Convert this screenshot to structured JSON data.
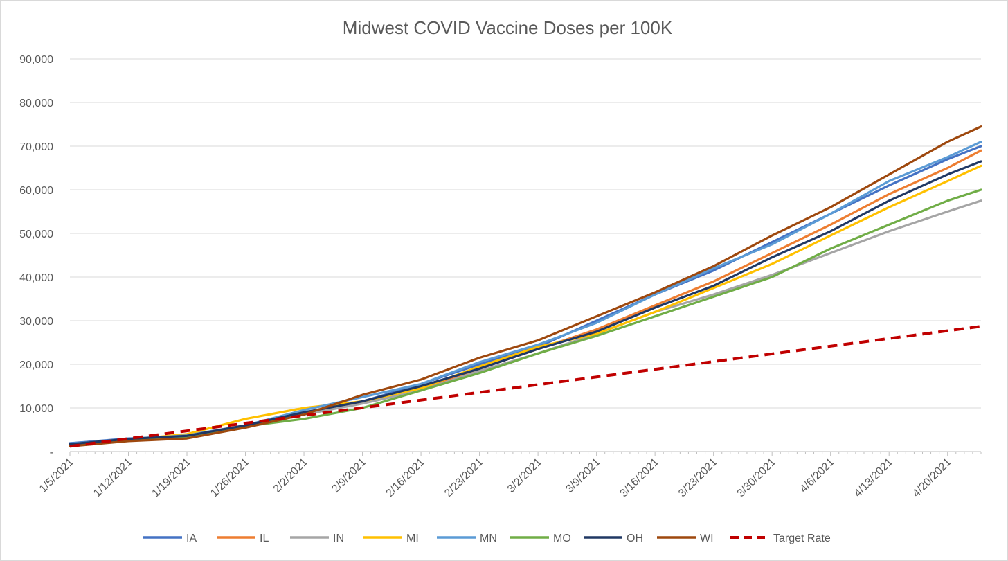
{
  "chart_data": {
    "type": "line",
    "title": "Midwest COVID Vaccine Doses per 100K",
    "xlabel": "",
    "ylabel": "",
    "ylim": [
      0,
      90000
    ],
    "y_ticks": [
      0,
      10000,
      20000,
      30000,
      40000,
      50000,
      60000,
      70000,
      80000,
      90000
    ],
    "y_tick_labels": [
      "-",
      "10,000",
      "20,000",
      "30,000",
      "40,000",
      "50,000",
      "60,000",
      "70,000",
      "80,000",
      "90,000"
    ],
    "x_start": "2021-01-05",
    "x_end": "2021-04-24",
    "x_tick_dates": [
      "2021-01-05",
      "2021-01-12",
      "2021-01-19",
      "2021-01-26",
      "2021-02-02",
      "2021-02-09",
      "2021-02-16",
      "2021-02-23",
      "2021-03-02",
      "2021-03-09",
      "2021-03-16",
      "2021-03-23",
      "2021-03-30",
      "2021-04-06",
      "2021-04-13",
      "2021-04-20"
    ],
    "x_tick_labels": [
      "1/5/2021",
      "1/12/2021",
      "1/19/2021",
      "1/26/2021",
      "2/2/2021",
      "2/9/2021",
      "2/16/2021",
      "2/23/2021",
      "3/2/2021",
      "3/9/2021",
      "3/16/2021",
      "3/23/2021",
      "3/30/2021",
      "4/6/2021",
      "4/13/2021",
      "4/20/2021"
    ],
    "grid": true,
    "legend_position": "bottom",
    "series": [
      {
        "name": "IA",
        "color": "#4472C4",
        "dash": false,
        "points": [
          [
            "2021-01-05",
            1900
          ],
          [
            "2021-01-12",
            3000
          ],
          [
            "2021-01-19",
            3500
          ],
          [
            "2021-01-26",
            6000
          ],
          [
            "2021-02-02",
            8500
          ],
          [
            "2021-02-09",
            11500
          ],
          [
            "2021-02-16",
            15500
          ],
          [
            "2021-02-23",
            20000
          ],
          [
            "2021-03-02",
            24000
          ],
          [
            "2021-03-09",
            30000
          ],
          [
            "2021-03-16",
            36000
          ],
          [
            "2021-03-23",
            41500
          ],
          [
            "2021-03-30",
            48000
          ],
          [
            "2021-04-06",
            54500
          ],
          [
            "2021-04-13",
            61000
          ],
          [
            "2021-04-20",
            67000
          ],
          [
            "2021-04-24",
            70000
          ]
        ]
      },
      {
        "name": "IL",
        "color": "#ED7D31",
        "dash": false,
        "points": [
          [
            "2021-01-05",
            1500
          ],
          [
            "2021-01-12",
            2600
          ],
          [
            "2021-01-19",
            3200
          ],
          [
            "2021-01-26",
            5500
          ],
          [
            "2021-02-02",
            8500
          ],
          [
            "2021-02-09",
            11500
          ],
          [
            "2021-02-16",
            14500
          ],
          [
            "2021-02-23",
            19000
          ],
          [
            "2021-03-02",
            23500
          ],
          [
            "2021-03-09",
            28000
          ],
          [
            "2021-03-16",
            33500
          ],
          [
            "2021-03-23",
            39000
          ],
          [
            "2021-03-30",
            45500
          ],
          [
            "2021-04-06",
            52000
          ],
          [
            "2021-04-13",
            59000
          ],
          [
            "2021-04-20",
            65000
          ],
          [
            "2021-04-24",
            69000
          ]
        ]
      },
      {
        "name": "IN",
        "color": "#A5A5A5",
        "dash": false,
        "points": [
          [
            "2021-01-05",
            1700
          ],
          [
            "2021-01-12",
            2900
          ],
          [
            "2021-01-19",
            3800
          ],
          [
            "2021-01-26",
            6000
          ],
          [
            "2021-02-02",
            8500
          ],
          [
            "2021-02-09",
            11000
          ],
          [
            "2021-02-16",
            14000
          ],
          [
            "2021-02-23",
            18500
          ],
          [
            "2021-03-02",
            22500
          ],
          [
            "2021-03-09",
            27000
          ],
          [
            "2021-03-16",
            32000
          ],
          [
            "2021-03-23",
            36000
          ],
          [
            "2021-03-30",
            40500
          ],
          [
            "2021-04-06",
            45500
          ],
          [
            "2021-04-13",
            50500
          ],
          [
            "2021-04-20",
            55000
          ],
          [
            "2021-04-24",
            57500
          ]
        ]
      },
      {
        "name": "MI",
        "color": "#FFC000",
        "dash": false,
        "points": [
          [
            "2021-01-05",
            1600
          ],
          [
            "2021-01-12",
            2700
          ],
          [
            "2021-01-19",
            4000
          ],
          [
            "2021-01-26",
            7500
          ],
          [
            "2021-02-02",
            10000
          ],
          [
            "2021-02-09",
            11500
          ],
          [
            "2021-02-16",
            14500
          ],
          [
            "2021-02-23",
            19500
          ],
          [
            "2021-03-02",
            24000
          ],
          [
            "2021-03-09",
            27000
          ],
          [
            "2021-03-16",
            32000
          ],
          [
            "2021-03-23",
            37500
          ],
          [
            "2021-03-30",
            43000
          ],
          [
            "2021-04-06",
            49500
          ],
          [
            "2021-04-13",
            56000
          ],
          [
            "2021-04-20",
            62000
          ],
          [
            "2021-04-24",
            65500
          ]
        ]
      },
      {
        "name": "MN",
        "color": "#5B9BD5",
        "dash": false,
        "points": [
          [
            "2021-01-05",
            1800
          ],
          [
            "2021-01-12",
            2900
          ],
          [
            "2021-01-19",
            3700
          ],
          [
            "2021-01-26",
            6000
          ],
          [
            "2021-02-02",
            9500
          ],
          [
            "2021-02-09",
            12500
          ],
          [
            "2021-02-16",
            15500
          ],
          [
            "2021-02-23",
            20500
          ],
          [
            "2021-03-02",
            24500
          ],
          [
            "2021-03-09",
            29500
          ],
          [
            "2021-03-16",
            36000
          ],
          [
            "2021-03-23",
            42000
          ],
          [
            "2021-03-30",
            47500
          ],
          [
            "2021-04-06",
            54500
          ],
          [
            "2021-04-13",
            62000
          ],
          [
            "2021-04-20",
            67500
          ],
          [
            "2021-04-24",
            71000
          ]
        ]
      },
      {
        "name": "MO",
        "color": "#70AD47",
        "dash": false,
        "points": [
          [
            "2021-01-05",
            1500
          ],
          [
            "2021-01-12",
            2600
          ],
          [
            "2021-01-19",
            3300
          ],
          [
            "2021-01-26",
            5800
          ],
          [
            "2021-02-02",
            7500
          ],
          [
            "2021-02-09",
            10000
          ],
          [
            "2021-02-16",
            14000
          ],
          [
            "2021-02-23",
            18000
          ],
          [
            "2021-03-02",
            22500
          ],
          [
            "2021-03-09",
            26500
          ],
          [
            "2021-03-16",
            31000
          ],
          [
            "2021-03-23",
            35500
          ],
          [
            "2021-03-30",
            40000
          ],
          [
            "2021-04-06",
            46500
          ],
          [
            "2021-04-13",
            52000
          ],
          [
            "2021-04-20",
            57500
          ],
          [
            "2021-04-24",
            60000
          ]
        ]
      },
      {
        "name": "OH",
        "color": "#203864",
        "dash": false,
        "points": [
          [
            "2021-01-05",
            1700
          ],
          [
            "2021-01-12",
            2900
          ],
          [
            "2021-01-19",
            3600
          ],
          [
            "2021-01-26",
            6000
          ],
          [
            "2021-02-02",
            9000
          ],
          [
            "2021-02-09",
            11500
          ],
          [
            "2021-02-16",
            15000
          ],
          [
            "2021-02-23",
            19000
          ],
          [
            "2021-03-02",
            23500
          ],
          [
            "2021-03-09",
            27500
          ],
          [
            "2021-03-16",
            33000
          ],
          [
            "2021-03-23",
            38000
          ],
          [
            "2021-03-30",
            44500
          ],
          [
            "2021-04-06",
            50500
          ],
          [
            "2021-04-13",
            57500
          ],
          [
            "2021-04-20",
            63500
          ],
          [
            "2021-04-24",
            66500
          ]
        ]
      },
      {
        "name": "WI",
        "color": "#9E480E",
        "dash": false,
        "points": [
          [
            "2021-01-05",
            1200
          ],
          [
            "2021-01-12",
            2400
          ],
          [
            "2021-01-19",
            3000
          ],
          [
            "2021-01-26",
            5500
          ],
          [
            "2021-02-02",
            8500
          ],
          [
            "2021-02-09",
            13000
          ],
          [
            "2021-02-16",
            16500
          ],
          [
            "2021-02-23",
            21500
          ],
          [
            "2021-03-02",
            25500
          ],
          [
            "2021-03-09",
            31000
          ],
          [
            "2021-03-16",
            36500
          ],
          [
            "2021-03-23",
            42500
          ],
          [
            "2021-03-30",
            49500
          ],
          [
            "2021-04-06",
            56000
          ],
          [
            "2021-04-13",
            63500
          ],
          [
            "2021-04-20",
            71000
          ],
          [
            "2021-04-24",
            74500
          ]
        ]
      },
      {
        "name": "Target Rate",
        "color": "#C00000",
        "dash": true,
        "points": [
          [
            "2021-01-05",
            1200
          ],
          [
            "2021-04-24",
            28700
          ]
        ]
      }
    ]
  }
}
